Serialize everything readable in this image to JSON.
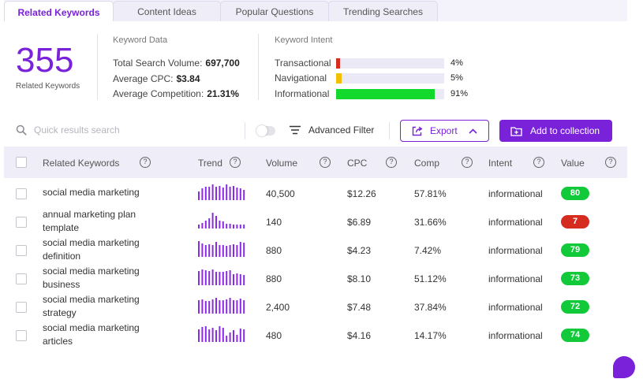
{
  "tabs": [
    {
      "label": "Related Keywords",
      "active": true
    },
    {
      "label": "Content Ideas",
      "active": false
    },
    {
      "label": "Popular Questions",
      "active": false
    },
    {
      "label": "Trending Searches",
      "active": false
    }
  ],
  "summary": {
    "count": "355",
    "count_label": "Related Keywords"
  },
  "keyword_data": {
    "title": "Keyword Data",
    "rows": [
      {
        "label": "Total Search Volume:",
        "value": "697,700"
      },
      {
        "label": "Average CPC:",
        "value": "$3.84"
      },
      {
        "label": "Average Competition:",
        "value": "21.31%"
      }
    ]
  },
  "keyword_intent": {
    "title": "Keyword Intent",
    "rows": [
      {
        "label": "Transactional",
        "pct": "4%",
        "fraction": 0.04,
        "color": "#d62b1f"
      },
      {
        "label": "Navigational",
        "pct": "5%",
        "fraction": 0.05,
        "color": "#f2c000"
      },
      {
        "label": "Informational",
        "pct": "91%",
        "fraction": 0.91,
        "color": "#12d92b"
      }
    ]
  },
  "toolbar": {
    "search_placeholder": "Quick results search",
    "advanced_filter": "Advanced Filter",
    "export": "Export",
    "add_to_collection": "Add to collection"
  },
  "table": {
    "headers": [
      "Related Keywords",
      "Trend",
      "Volume",
      "CPC",
      "Comp",
      "Intent",
      "Value"
    ],
    "help_glyph": "?",
    "rows": [
      {
        "keyword": "social media marketing",
        "volume": "40,500",
        "cpc": "$12.26",
        "comp": "57.81%",
        "intent": "informational",
        "value": "80",
        "value_color": "#12c93a",
        "trend": [
          0.55,
          0.75,
          0.85,
          0.85,
          1,
          0.85,
          0.9,
          0.8,
          1,
          0.85,
          0.9,
          0.8,
          0.75,
          0.65
        ]
      },
      {
        "keyword": "annual marketing plan template",
        "volume": "140",
        "cpc": "$6.89",
        "comp": "31.66%",
        "intent": "informational",
        "value": "7",
        "value_color": "#d62b1f",
        "trend": [
          0.25,
          0.35,
          0.5,
          0.65,
          1,
          0.8,
          0.5,
          0.45,
          0.3,
          0.3,
          0.25,
          0.25,
          0.25,
          0.25
        ]
      },
      {
        "keyword": "social media marketing definition",
        "volume": "880",
        "cpc": "$4.23",
        "comp": "7.42%",
        "intent": "informational",
        "value": "79",
        "value_color": "#12c93a",
        "trend": [
          1,
          0.85,
          0.75,
          0.8,
          0.75,
          0.95,
          0.75,
          0.75,
          0.7,
          0.75,
          0.8,
          0.75,
          0.95,
          0.9
        ]
      },
      {
        "keyword": "social media marketing business",
        "volume": "880",
        "cpc": "$8.10",
        "comp": "51.12%",
        "intent": "informational",
        "value": "73",
        "value_color": "#12c93a",
        "trend": [
          0.9,
          1,
          0.95,
          0.9,
          1,
          0.85,
          0.85,
          0.85,
          0.9,
          0.95,
          0.7,
          0.75,
          0.7,
          0.65
        ]
      },
      {
        "keyword": "social media marketing strategy",
        "volume": "2,400",
        "cpc": "$7.48",
        "comp": "37.84%",
        "intent": "informational",
        "value": "72",
        "value_color": "#12c93a",
        "trend": [
          0.85,
          0.9,
          0.8,
          0.8,
          0.9,
          1,
          0.85,
          0.85,
          0.9,
          1,
          0.85,
          0.85,
          0.95,
          0.85
        ]
      },
      {
        "keyword": "social media marketing articles",
        "volume": "480",
        "cpc": "$4.16",
        "comp": "14.17%",
        "intent": "informational",
        "value": "74",
        "value_color": "#12c93a",
        "trend": [
          0.8,
          0.95,
          1,
          0.8,
          0.9,
          0.75,
          1,
          0.9,
          0.4,
          0.6,
          0.75,
          0.45,
          0.85,
          0.8
        ]
      }
    ]
  },
  "colors": {
    "accent": "#7a22d9",
    "bar_track": "#ebe9f6",
    "trend_bar": "#8a2be2"
  }
}
